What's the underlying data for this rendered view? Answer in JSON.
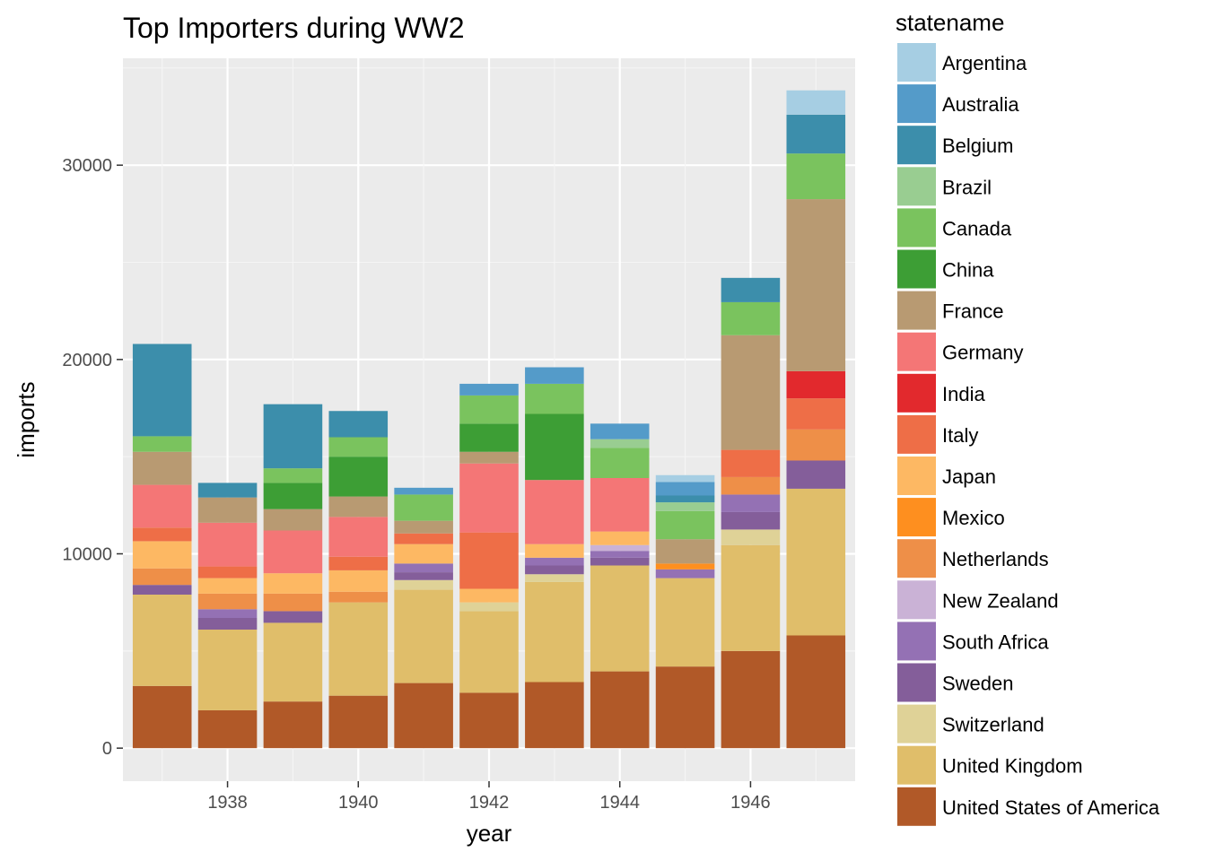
{
  "chart_data": {
    "type": "bar",
    "stacked": true,
    "title": "Top Importers during WW2",
    "xlabel": "year",
    "ylabel": "imports",
    "x": [
      1937,
      1938,
      1939,
      1940,
      1941,
      1942,
      1943,
      1944,
      1945,
      1946,
      1947
    ],
    "x_ticks": [
      "1938",
      "1940",
      "1942",
      "1944",
      "1946"
    ],
    "y_ticks": [
      "0",
      "10000",
      "20000",
      "30000"
    ],
    "ylim": [
      -1700,
      35500
    ],
    "grid": true,
    "legend_title": "statename",
    "legend_position": "right",
    "series": [
      {
        "name": "United States of America",
        "color": "#B15928",
        "values": [
          3200,
          1950,
          2400,
          2700,
          3350,
          2850,
          3400,
          3950,
          4200,
          5000,
          5800
        ]
      },
      {
        "name": "United Kingdom",
        "color": "#E0BE6A",
        "values": [
          4700,
          4150,
          4050,
          4800,
          4800,
          4200,
          5150,
          5450,
          4550,
          5450,
          7550
        ]
      },
      {
        "name": "Switzerland",
        "color": "#DFD297",
        "values": [
          0,
          0,
          0,
          0,
          500,
          450,
          400,
          0,
          0,
          800,
          0
        ]
      },
      {
        "name": "Sweden",
        "color": "#845E9A",
        "values": [
          500,
          600,
          600,
          0,
          400,
          0,
          450,
          400,
          0,
          900,
          1450
        ]
      },
      {
        "name": "South Africa",
        "color": "#9471B4",
        "values": [
          0,
          450,
          0,
          0,
          450,
          0,
          400,
          350,
          450,
          900,
          0
        ]
      },
      {
        "name": "New Zealand",
        "color": "#CAB2D6",
        "values": [
          0,
          0,
          0,
          0,
          0,
          0,
          0,
          300,
          0,
          0,
          0
        ]
      },
      {
        "name": "Netherlands",
        "color": "#EE8F48",
        "values": [
          850,
          800,
          900,
          550,
          0,
          0,
          0,
          0,
          0,
          900,
          1600
        ]
      },
      {
        "name": "Mexico",
        "color": "#FE8F1F",
        "values": [
          0,
          0,
          0,
          0,
          0,
          0,
          0,
          0,
          300,
          0,
          0
        ]
      },
      {
        "name": "Japan",
        "color": "#FDB863",
        "values": [
          1400,
          800,
          1050,
          1100,
          1000,
          700,
          700,
          700,
          0,
          0,
          0
        ]
      },
      {
        "name": "Italy",
        "color": "#EE6E47",
        "values": [
          700,
          600,
          0,
          700,
          550,
          2900,
          0,
          0,
          0,
          1400,
          1600
        ]
      },
      {
        "name": "India",
        "color": "#E2292D",
        "values": [
          0,
          0,
          0,
          0,
          0,
          0,
          0,
          0,
          0,
          0,
          1400
        ]
      },
      {
        "name": "Germany",
        "color": "#F47676",
        "values": [
          2200,
          2250,
          2200,
          2050,
          0,
          3550,
          3300,
          2750,
          0,
          0,
          0
        ]
      },
      {
        "name": "France",
        "color": "#B89A72",
        "values": [
          1700,
          1300,
          1100,
          1050,
          650,
          600,
          0,
          0,
          1250,
          5900,
          8850
        ]
      },
      {
        "name": "China",
        "color": "#3D9E35",
        "values": [
          0,
          0,
          1350,
          2050,
          0,
          1450,
          3400,
          0,
          0,
          0,
          0
        ]
      },
      {
        "name": "Canada",
        "color": "#7AC35E",
        "values": [
          800,
          0,
          750,
          1000,
          1350,
          1450,
          1550,
          1550,
          1450,
          1700,
          2350
        ]
      },
      {
        "name": "Brazil",
        "color": "#99CD91",
        "values": [
          0,
          0,
          0,
          0,
          0,
          0,
          0,
          450,
          450,
          0,
          0
        ]
      },
      {
        "name": "Belgium",
        "color": "#3C8EAB",
        "values": [
          4750,
          750,
          3300,
          1350,
          0,
          0,
          0,
          0,
          350,
          1250,
          2000
        ]
      },
      {
        "name": "Australia",
        "color": "#549BC9",
        "values": [
          0,
          0,
          0,
          0,
          350,
          600,
          850,
          800,
          700,
          0,
          0
        ]
      },
      {
        "name": "Argentina",
        "color": "#A6CEE3",
        "values": [
          0,
          0,
          0,
          0,
          0,
          0,
          0,
          0,
          350,
          0,
          1250
        ]
      }
    ],
    "legend_order": [
      "Argentina",
      "Australia",
      "Belgium",
      "Brazil",
      "Canada",
      "China",
      "France",
      "Germany",
      "India",
      "Italy",
      "Japan",
      "Mexico",
      "Netherlands",
      "New Zealand",
      "South Africa",
      "Sweden",
      "Switzerland",
      "United Kingdom",
      "United States of America"
    ]
  }
}
